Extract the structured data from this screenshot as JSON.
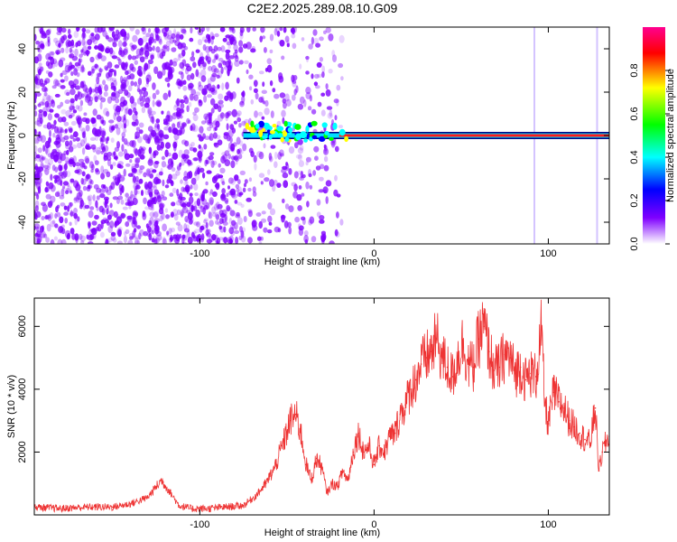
{
  "title": "C2E2.2025.289.08.10.G09",
  "chart_data": [
    {
      "type": "heatmap",
      "xlabel": "Height of straight line (km)",
      "ylabel": "Frequency (Hz)",
      "xlim": [
        -195,
        135
      ],
      "ylim": [
        -50,
        50
      ],
      "x_ticks": [
        -100,
        0,
        100
      ],
      "y_ticks": [
        -40,
        -20,
        0,
        20,
        40
      ],
      "colorbar": {
        "label": "Normalized spectral amplitude",
        "range": [
          0,
          1
        ],
        "ticks": [
          0.0,
          0.2,
          0.4,
          0.6,
          0.8
        ],
        "colors": [
          "#ffffff",
          "#7f00ff",
          "#0000ff",
          "#00ffff",
          "#00ff00",
          "#ffff00",
          "#ff0000",
          "#ff00a0"
        ]
      },
      "line": {
        "frequency": 0,
        "x_start": -75,
        "x_end": 135
      },
      "scatter_region": {
        "x_start": -195,
        "x_end": -18,
        "dense_until": -75,
        "color": "#7f00ff"
      }
    },
    {
      "type": "line",
      "xlabel": "Height of straight line (km)",
      "ylabel": "SNR (10 * v/v)",
      "xlim": [
        -195,
        135
      ],
      "ylim": [
        0,
        6900
      ],
      "x_ticks": [
        -100,
        0,
        100
      ],
      "y_ticks": [
        2000,
        4000,
        6000
      ],
      "color": "#ee3333",
      "x": [
        -195,
        -180,
        -165,
        -150,
        -140,
        -130,
        -125,
        -122,
        -118,
        -112,
        -105,
        -95,
        -85,
        -75,
        -68,
        -62,
        -57,
        -52,
        -48,
        -45,
        -42,
        -39,
        -36,
        -33,
        -30,
        -27,
        -24,
        -21,
        -18,
        -15,
        -12,
        -9,
        -6,
        -3,
        0,
        3,
        6,
        9,
        12,
        15,
        18,
        21,
        24,
        27,
        30,
        33,
        36,
        39,
        42,
        45,
        48,
        51,
        54,
        57,
        60,
        63,
        66,
        69,
        72,
        75,
        78,
        81,
        84,
        87,
        90,
        93,
        96,
        98,
        100,
        103,
        106,
        109,
        112,
        115,
        118,
        121,
        124,
        127,
        129,
        131,
        133,
        135
      ],
      "y": [
        250,
        200,
        250,
        250,
        350,
        550,
        900,
        1100,
        800,
        300,
        200,
        200,
        250,
        300,
        600,
        1000,
        1500,
        2300,
        3000,
        3200,
        2600,
        1600,
        1100,
        1800,
        1500,
        700,
        1000,
        900,
        1400,
        1100,
        2000,
        2600,
        2000,
        2200,
        1600,
        2200,
        2000,
        2500,
        2600,
        3200,
        3500,
        4000,
        4300,
        4800,
        5000,
        5200,
        5600,
        5000,
        4700,
        4400,
        5000,
        5500,
        4800,
        4700,
        5600,
        6000,
        5200,
        4600,
        4700,
        5100,
        5000,
        4500,
        4700,
        4300,
        4500,
        4400,
        5900,
        3500,
        2900,
        3900,
        3600,
        3400,
        3000,
        2800,
        2600,
        2400,
        2300,
        3400,
        1400,
        2000,
        2300,
        2500
      ]
    }
  ]
}
